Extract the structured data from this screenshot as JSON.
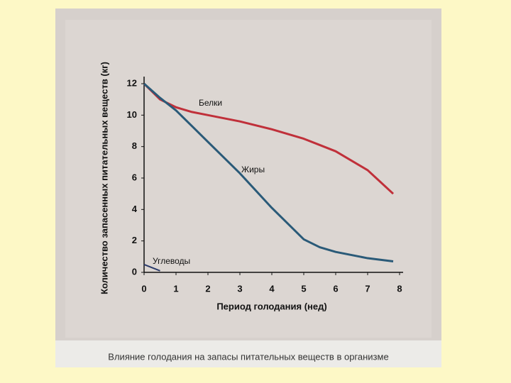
{
  "chart_data": {
    "type": "line",
    "xlabel": "Период голодания (нед)",
    "ylabel": "Количество запасенных питательных веществ (кг)",
    "caption": "Влияние голодания на запасы питательных веществ в организме",
    "x": [
      0,
      0.5,
      1,
      1.5,
      2,
      3,
      4,
      5,
      5.5,
      6,
      7,
      7.8
    ],
    "series": [
      {
        "name": "Белки",
        "color": "#c0303a",
        "values": [
          12,
          11,
          10.5,
          10.2,
          10,
          9.6,
          9.1,
          8.5,
          8.1,
          7.7,
          6.5,
          5
        ]
      },
      {
        "name": "Жиры",
        "color": "#2a5a78",
        "values": [
          12,
          11.1,
          10.3,
          9.3,
          8.3,
          6.3,
          4.1,
          2.1,
          1.6,
          1.3,
          0.9,
          0.7
        ]
      },
      {
        "name": "Углеводы",
        "color": "#2a3a6a",
        "values": [
          0.5,
          0.1,
          null,
          null,
          null,
          null,
          null,
          null,
          null,
          null,
          null,
          null
        ]
      }
    ],
    "xlim": [
      0,
      8
    ],
    "xticks": [
      0,
      1,
      2,
      3,
      4,
      5,
      6,
      7,
      8
    ],
    "ylim": [
      0,
      12
    ],
    "yticks": [
      0,
      2,
      4,
      6,
      8,
      10,
      12
    ],
    "grid": false
  }
}
